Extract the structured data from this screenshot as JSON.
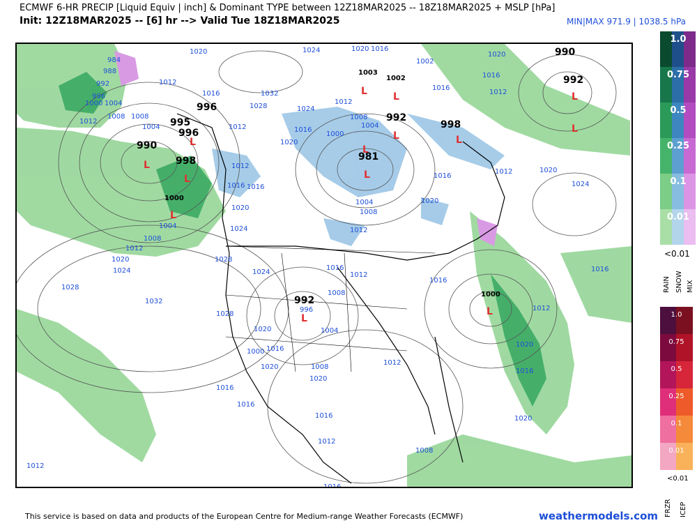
{
  "header": {
    "title": "ECMWF 6-HR PRECIP [Liquid Equiv | inch] & Dominant TYPE between 12Z18MAR2025 -- 18Z18MAR2025 + MSLP [hPa]",
    "subtitle": "Init: 12Z18MAR2025 -- [6] hr --> Valid Tue 18Z18MAR2025",
    "minmax": "MIN|MAX 971.9 | 1038.5 hPa"
  },
  "footer": {
    "note": "This service is based on data and products of the European Centre for Medium-range Weather Forecasts (ECMWF)",
    "site": "weathermodels.com"
  },
  "legend_main": {
    "values": [
      "1.0",
      "0.75",
      "0.5",
      "0.25",
      "0.1",
      "0.01"
    ],
    "colors": {
      "rain": [
        "#0a4a2e",
        "#17774a",
        "#2b9a58",
        "#45b46a",
        "#7ccd86",
        "#a9dfa7"
      ],
      "snow": [
        "#1e4f8a",
        "#2c6ea8",
        "#3d86c0",
        "#5c9fd0",
        "#87bde0",
        "#b2d5ec"
      ],
      "mix": [
        "#7d2a8a",
        "#9a3aa8",
        "#b24cc0",
        "#c96ad4",
        "#dc95e4",
        "#ebbdf0"
      ]
    },
    "below_label": "<0.01",
    "types": [
      "RAIN",
      "SNOW",
      "MIX"
    ]
  },
  "legend_ice": {
    "values": [
      "1.0",
      "0.75",
      "0.5",
      "0.25",
      "0.1",
      "0.01"
    ],
    "colors": {
      "frzr": [
        "#4d0f3d",
        "#7d0a3f",
        "#b3155a",
        "#e02f7a",
        "#ee6fa0",
        "#f4a7c2"
      ],
      "icep": [
        "#7a1020",
        "#b01228",
        "#d7263a",
        "#ee5a2a",
        "#f58a3a",
        "#f9b25a"
      ]
    },
    "below_label": "<0.01",
    "types": [
      "FRZR",
      "ICEP"
    ]
  },
  "map": {
    "low_markers": [
      "L",
      "L",
      "L",
      "L",
      "L",
      "L",
      "L",
      "L",
      "L",
      "L",
      "L",
      "L",
      "L",
      "L"
    ],
    "isobar_labels": [
      "1020",
      "1016",
      "1020",
      "1024",
      "1020",
      "1003",
      "1002",
      "1016",
      "1020",
      "1016",
      "1012",
      "1016",
      "1012",
      "984",
      "988",
      "992",
      "996",
      "1000",
      "1004",
      "1012",
      "1008",
      "1008",
      "1004",
      "1012",
      "1016",
      "1032",
      "1028",
      "1024",
      "1012",
      "1008",
      "1004",
      "1016",
      "1000",
      "1020",
      "1012",
      "1016",
      "1016",
      "1004",
      "1008",
      "1012",
      "1016",
      "1020",
      "1024",
      "1024",
      "1020",
      "1020",
      "1012",
      "1004",
      "1008",
      "1012",
      "1020",
      "1024",
      "1028",
      "1032",
      "1024",
      "1028",
      "1016",
      "1012",
      "1016",
      "1008",
      "1020",
      "1012",
      "1016",
      "1028",
      "1020",
      "1024",
      "1008",
      "1000",
      "996",
      "1004",
      "1008",
      "1020",
      "1012",
      "1016",
      "1020",
      "1016",
      "1016",
      "1016",
      "1012",
      "1008",
      "1012",
      "1016",
      "1020",
      "1016",
      "1020",
      "1012",
      "1016"
    ],
    "bold_labels": [
      "990",
      "992",
      "995",
      "996",
      "996",
      "998",
      "990",
      "1000",
      "992",
      "998",
      "981",
      "992",
      "1000",
      "1003",
      "1002"
    ]
  }
}
